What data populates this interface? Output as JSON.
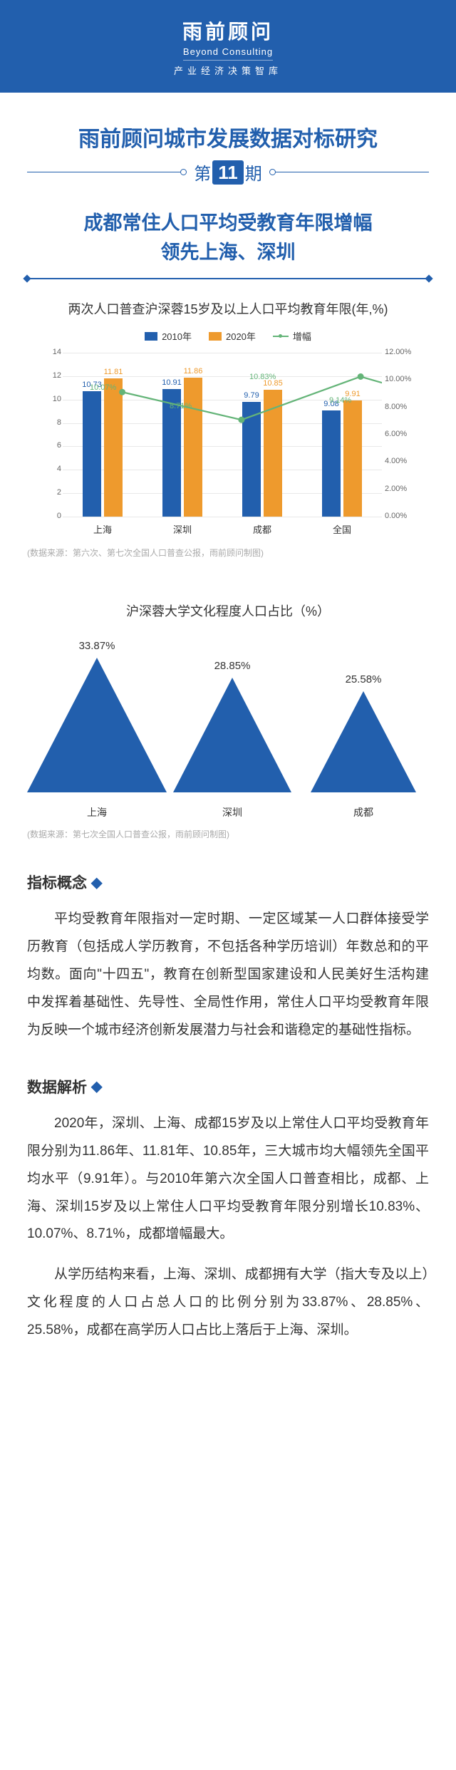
{
  "header": {
    "logo_cn": "雨前顾问",
    "logo_en": "Beyond Consulting",
    "logo_sub": "产业经济决策智库"
  },
  "title1": "雨前顾问城市发展数据对标研究",
  "issue": {
    "pre": "第",
    "num": "11",
    "post": "期"
  },
  "title2_l1": "成都常住人口平均受教育年限增幅",
  "title2_l2": "领先上海、深圳",
  "chart1": {
    "title": "两次人口普查沪深蓉15岁及以上人口平均教育年限(年,%)",
    "legend": {
      "a": "2010年",
      "b": "2020年",
      "c": "增幅"
    },
    "color_a": "#225fad",
    "color_b": "#ee9a2d",
    "color_c": "#64b478",
    "left_max": 14,
    "right_max": 12,
    "left_ticks": [
      14,
      12,
      10,
      8,
      6,
      4,
      2,
      0
    ],
    "right_ticks": [
      "12.00%",
      "10.00%",
      "8.00%",
      "6.00%",
      "4.00%",
      "2.00%",
      "0.00%"
    ],
    "cats": [
      {
        "name": "上海",
        "a": 10.73,
        "b": 11.81,
        "g": "10.07%",
        "g_val": 10.07
      },
      {
        "name": "深圳",
        "a": 10.91,
        "b": 11.86,
        "g": "8.71%",
        "g_val": 8.71
      },
      {
        "name": "成都",
        "a": 9.79,
        "b": 10.85,
        "g": "10.83%",
        "g_val": 10.83
      },
      {
        "name": "全国",
        "a": 9.08,
        "b": 9.91,
        "g": "9.14%",
        "g_val": 9.14
      }
    ],
    "source": "(数据来源：第六次、第七次全国人口普查公报，雨前顾问制图)"
  },
  "chart2": {
    "title": "沪深蓉大学文化程度人口占比（%）",
    "color": "#225fad",
    "max": 34,
    "items": [
      {
        "name": "上海",
        "val": 33.87,
        "label": "33.87%"
      },
      {
        "name": "深圳",
        "val": 28.85,
        "label": "28.85%"
      },
      {
        "name": "成都",
        "val": 25.58,
        "label": "25.58%"
      }
    ],
    "source": "(数据来源：第七次全国人口普查公报，雨前顾问制图)"
  },
  "sec1_h": "指标概念",
  "sec1_p": "平均受教育年限指对一定时期、一定区域某一人口群体接受学历教育（包括成人学历教育，不包括各种学历培训）年数总和的平均数。面向\"十四五\"，教育在创新型国家建设和人民美好生活构建中发挥着基础性、先导性、全局性作用，常住人口平均受教育年限为反映一个城市经济创新发展潜力与社会和谐稳定的基础性指标。",
  "sec2_h": "数据解析",
  "sec2_p1": "2020年，深圳、上海、成都15岁及以上常住人口平均受教育年限分别为11.86年、11.81年、10.85年，三大城市均大幅领先全国平均水平（9.91年）。与2010年第六次全国人口普查相比，成都、上海、深圳15岁及以上常住人口平均受教育年限分别增长10.83%、10.07%、8.71%，成都增幅最大。",
  "sec2_p2": "从学历结构来看，上海、深圳、成都拥有大学（指大专及以上）文化程度的人口占总人口的比例分别为33.87%、28.85%、25.58%，成都在高学历人口占比上落后于上海、深圳。"
}
